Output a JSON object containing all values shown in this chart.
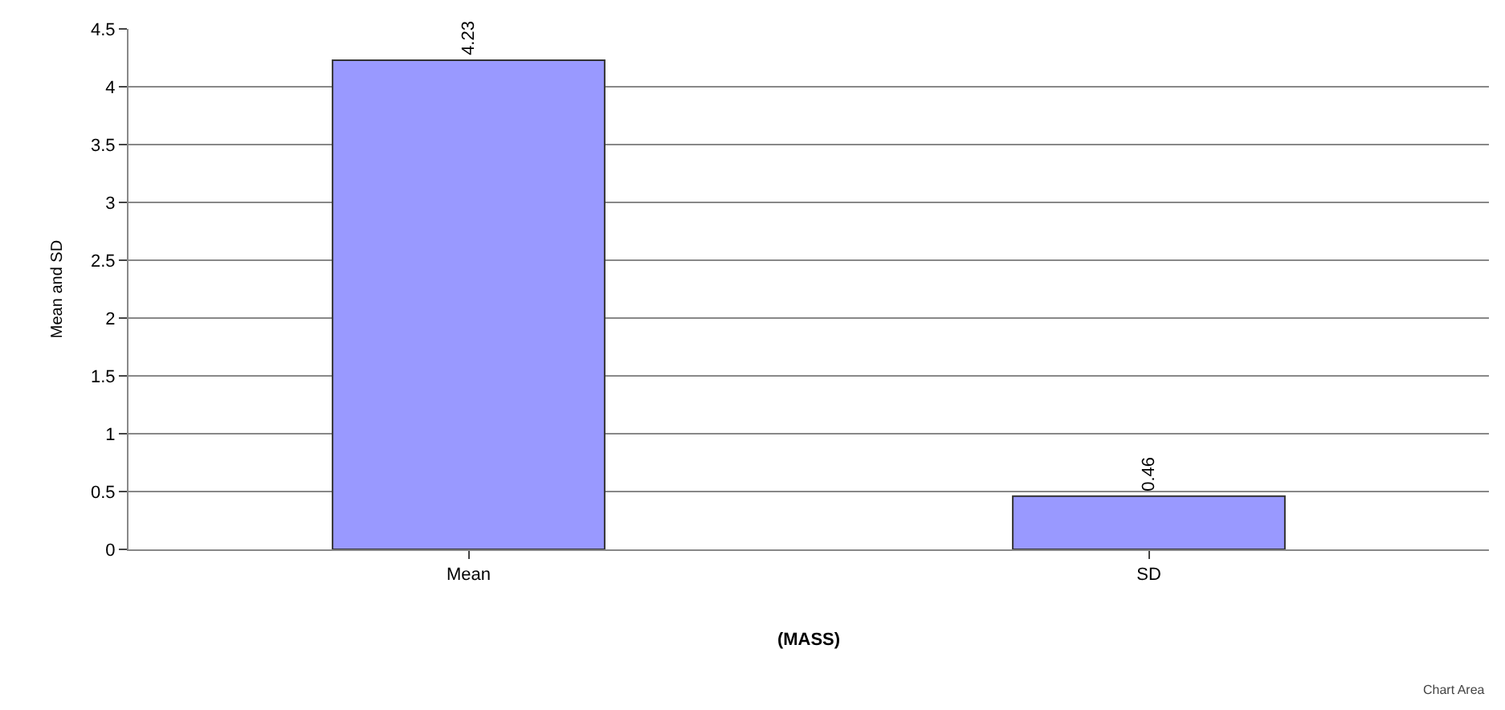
{
  "chart_data": {
    "type": "bar",
    "xlabel": "(MASS)",
    "ylabel": "Mean and SD",
    "categories": [
      "Mean",
      "SD"
    ],
    "series": [
      {
        "color": "#9999ff",
        "values": [
          4.23,
          0.46
        ]
      }
    ],
    "data_labels": true,
    "ylim": [
      0,
      4.5
    ],
    "yticks": [
      0,
      0.5,
      1,
      1.5,
      2,
      2.5,
      3,
      3.5,
      4,
      4.5
    ],
    "grid": "y",
    "legend": false,
    "annotations": [
      "Chart Area"
    ]
  }
}
